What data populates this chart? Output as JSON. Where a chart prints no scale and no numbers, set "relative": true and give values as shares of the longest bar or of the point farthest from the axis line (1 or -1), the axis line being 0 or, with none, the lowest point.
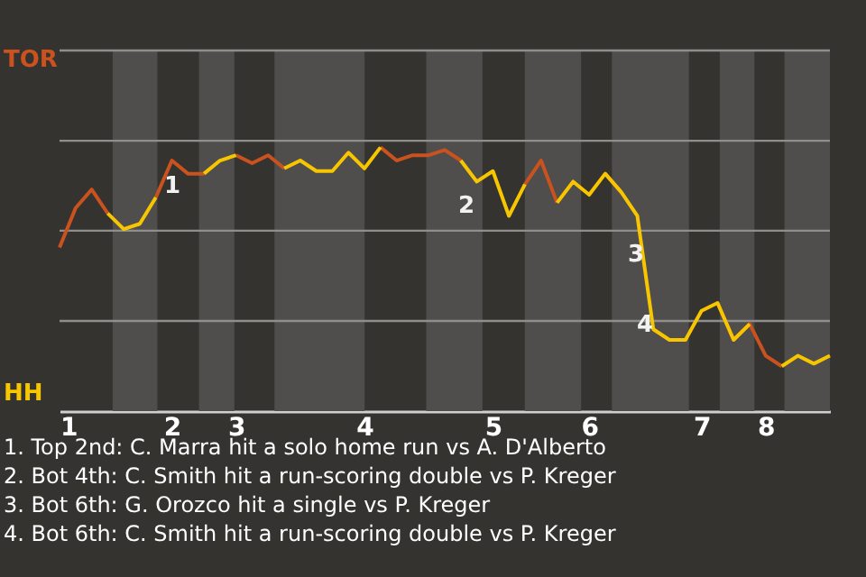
{
  "chart_data": {
    "type": "line",
    "relative": true,
    "categories": [
      "1",
      null,
      null,
      null,
      null,
      null,
      null,
      "2",
      null,
      null,
      null,
      "3",
      null,
      null,
      null,
      null,
      null,
      null,
      null,
      "4",
      null,
      null,
      null,
      null,
      null,
      null,
      null,
      "5",
      null,
      null,
      null,
      null,
      null,
      "6",
      null,
      null,
      null,
      null,
      null,
      null,
      "7",
      null,
      null,
      null,
      "8",
      null,
      null,
      null,
      null
    ],
    "series": [
      {
        "name": "TOR",
        "color": "#c9521f",
        "values": [
          0.62,
          0.77,
          0.84,
          0.75,
          null,
          null,
          0.81,
          0.95,
          0.9,
          0.9,
          null,
          0.97,
          0.94,
          0.97,
          0.92,
          null,
          null,
          null,
          null,
          null,
          1,
          0.95,
          0.97,
          0.97,
          0.99,
          0.95,
          null,
          null,
          null,
          0.86,
          0.95,
          0.79,
          null,
          null,
          0.9,
          0.83,
          null,
          null,
          null,
          null,
          null,
          0.41,
          0.27,
          0.33,
          0.21,
          0.17,
          null,
          null,
          null
        ]
      },
      {
        "name": "HH",
        "color": "#f7c600",
        "values": [
          null,
          null,
          null,
          0.75,
          0.69,
          0.71,
          0.81,
          null,
          null,
          0.9,
          0.95,
          0.97,
          null,
          null,
          0.92,
          0.95,
          0.91,
          0.91,
          0.98,
          0.92,
          1,
          null,
          null,
          null,
          null,
          0.95,
          0.87,
          0.91,
          0.74,
          0.86,
          null,
          0.79,
          0.87,
          0.82,
          0.9,
          0.83,
          0.74,
          0.31,
          0.27,
          0.27,
          0.38,
          0.41,
          0.27,
          0.33,
          null,
          0.17,
          0.21,
          0.18,
          0.21
        ]
      }
    ],
    "ref_lines": [
      {
        "axis": "y",
        "value": 0.342,
        "color": "#8e8e8c"
      },
      {
        "axis": "y",
        "value": 0.684,
        "color": "#8e8e8c"
      },
      {
        "axis": "y",
        "value": 1.025,
        "color": "#8e8e8c"
      },
      {
        "axis": "y",
        "value": 1.367,
        "color": "#8e8e8c"
      }
    ],
    "marker": "none",
    "line_style": "solid",
    "annotations": [
      "1",
      "2",
      "3",
      "4",
      "1. Top 2nd: C. Marra hit a solo home run vs A. D'Alberto",
      "2. Bot 4th: C. Smith hit a run-scoring double vs P. Kreger",
      "3. Bot 6th: G. Orozco hit a single vs P. Kreger",
      "4. Bot 6th: C. Smith hit a run-scoring double vs P. Kreger"
    ]
  }
}
